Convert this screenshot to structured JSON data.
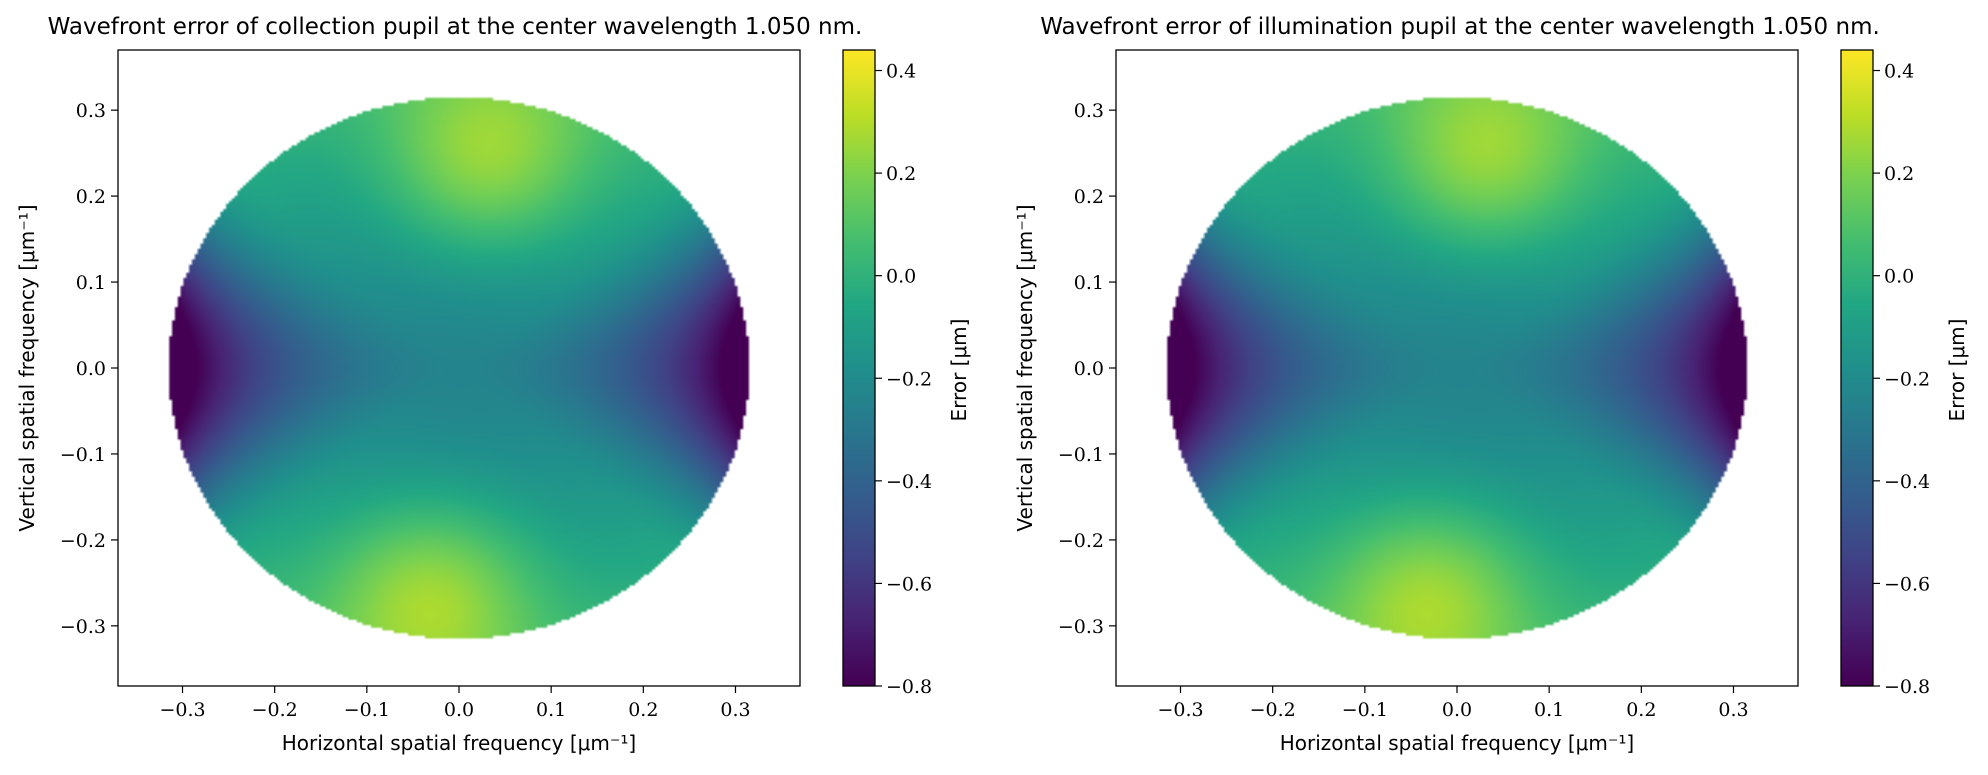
{
  "chart_data": [
    {
      "type": "heatmap",
      "title": "Wavefront error of collection pupil at the center wavelength 1.050 nm.",
      "xlabel": "Horizontal spatial frequency [μm⁻¹]",
      "ylabel": "Vertical spatial frequency [μm⁻¹]",
      "xlim": [
        -0.37,
        0.37
      ],
      "ylim": [
        -0.37,
        0.37
      ],
      "xticks": [
        -0.3,
        -0.2,
        -0.1,
        0.0,
        0.1,
        0.2,
        0.3
      ],
      "yticks": [
        -0.3,
        -0.2,
        -0.1,
        0.0,
        0.1,
        0.2,
        0.3
      ],
      "xtick_labels": [
        "−0.3",
        "−0.2",
        "−0.1",
        "0.0",
        "0.1",
        "0.2",
        "0.3"
      ],
      "ytick_labels": [
        "−0.3",
        "−0.2",
        "−0.1",
        "0.0",
        "0.1",
        "0.2",
        "0.3"
      ],
      "pupil_radius": 0.315,
      "colormap": "viridis",
      "colorbar": {
        "label": "Error [μm]",
        "min": -0.8,
        "max": 0.44,
        "ticks": [
          -0.8,
          -0.6,
          -0.4,
          -0.2,
          0.0,
          0.2,
          0.4
        ],
        "tick_labels": [
          "−0.8",
          "−0.6",
          "−0.4",
          "−0.2",
          "0.0",
          "0.2",
          "0.4"
        ]
      },
      "field": {
        "description_values": "center -0.25, top lobe 0.42, bottom lobe 0.42, left/right edges -0.8",
        "center_value": -0.25,
        "top_lobe": {
          "x": 0.03,
          "y": 0.24,
          "value": 0.42
        },
        "bottom_lobe": {
          "x": -0.03,
          "y": -0.26,
          "value": 0.42
        },
        "edge_value": -0.8
      }
    },
    {
      "type": "heatmap",
      "title": "Wavefront error of illumination pupil at the center wavelength 1.050 nm.",
      "xlabel": "Horizontal spatial frequency [μm⁻¹]",
      "ylabel": "Vertical spatial frequency [μm⁻¹]",
      "xlim": [
        -0.37,
        0.37
      ],
      "ylim": [
        -0.37,
        0.37
      ],
      "xticks": [
        -0.3,
        -0.2,
        -0.1,
        0.0,
        0.1,
        0.2,
        0.3
      ],
      "yticks": [
        -0.3,
        -0.2,
        -0.1,
        0.0,
        0.1,
        0.2,
        0.3
      ],
      "xtick_labels": [
        "−0.3",
        "−0.2",
        "−0.1",
        "0.0",
        "0.1",
        "0.2",
        "0.3"
      ],
      "ytick_labels": [
        "−0.3",
        "−0.2",
        "−0.1",
        "0.0",
        "0.1",
        "0.2",
        "0.3"
      ],
      "pupil_radius": 0.315,
      "colormap": "viridis",
      "colorbar": {
        "label": "Error [μm]",
        "min": -0.8,
        "max": 0.44,
        "ticks": [
          -0.8,
          -0.6,
          -0.4,
          -0.2,
          0.0,
          0.2,
          0.4
        ],
        "tick_labels": [
          "−0.8",
          "−0.6",
          "−0.4",
          "−0.2",
          "0.0",
          "0.2",
          "0.4"
        ]
      },
      "field": {
        "center_value": -0.25,
        "top_lobe": {
          "x": 0.03,
          "y": 0.24,
          "value": 0.42
        },
        "bottom_lobe": {
          "x": -0.03,
          "y": -0.26,
          "value": 0.42
        },
        "edge_value": -0.8
      }
    }
  ]
}
